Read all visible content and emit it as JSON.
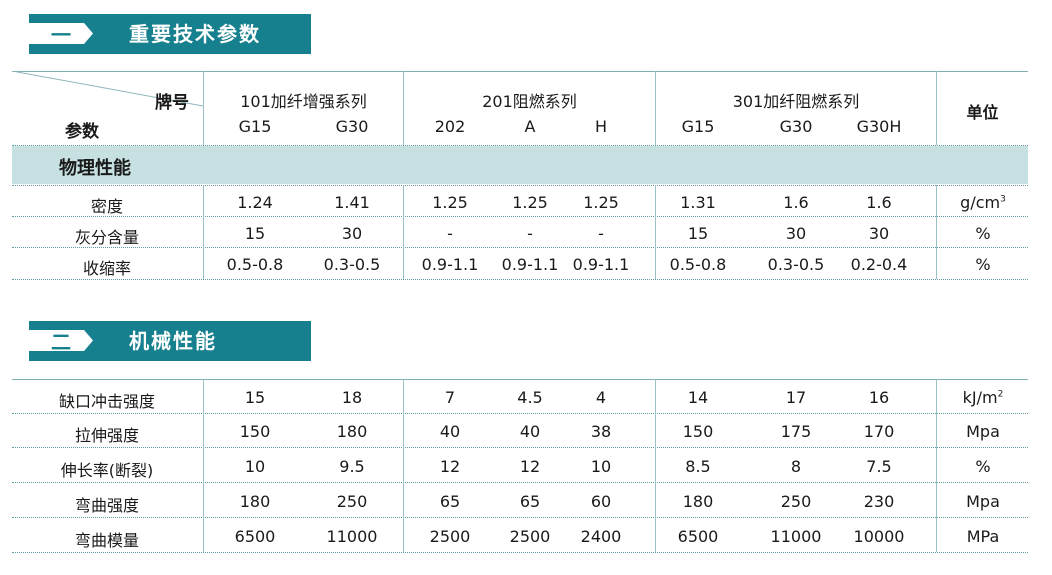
{
  "sections": [
    {
      "num": "一",
      "title": "重要技术参数"
    },
    {
      "num": "二",
      "title": "机械性能"
    }
  ],
  "header": {
    "brand_label": "牌号",
    "param_label": "参数",
    "unit_label": "单位",
    "groups": [
      "101加纤增强系列",
      "201阻燃系列",
      "301加纤阻燃系列"
    ],
    "grades": [
      "G15",
      "G30",
      "202",
      "A",
      "H",
      "G15",
      "G30",
      "G30H"
    ]
  },
  "physical": {
    "band_label": "物理性能",
    "rows": [
      {
        "name": "密度",
        "values": [
          "1.24",
          "1.41",
          "1.25",
          "1.25",
          "1.25",
          "1.31",
          "1.6",
          "1.6"
        ],
        "unit": "g/cm",
        "unit_sup": "3"
      },
      {
        "name": "灰分含量",
        "values": [
          "15",
          "30",
          "-",
          "-",
          "-",
          "15",
          "30",
          "30"
        ],
        "unit": "%",
        "unit_sup": ""
      },
      {
        "name": "收缩率",
        "values": [
          "0.5-0.8",
          "0.3-0.5",
          "0.9-1.1",
          "0.9-1.1",
          "0.9-1.1",
          "0.5-0.8",
          "0.3-0.5",
          "0.2-0.4"
        ],
        "unit": "%",
        "unit_sup": ""
      }
    ]
  },
  "mechanical": {
    "rows": [
      {
        "name": "缺口冲击强度",
        "values": [
          "15",
          "18",
          "7",
          "4.5",
          "4",
          "14",
          "17",
          "16"
        ],
        "unit": "kJ/m",
        "unit_sup": "2"
      },
      {
        "name": "拉伸强度",
        "values": [
          "150",
          "180",
          "40",
          "40",
          "38",
          "150",
          "175",
          "170"
        ],
        "unit": "Mpa",
        "unit_sup": ""
      },
      {
        "name": "伸长率(断裂)",
        "values": [
          "10",
          "9.5",
          "12",
          "12",
          "10",
          "8.5",
          "8",
          "7.5"
        ],
        "unit": "%",
        "unit_sup": ""
      },
      {
        "name": "弯曲强度",
        "values": [
          "180",
          "250",
          "65",
          "65",
          "60",
          "180",
          "250",
          "230"
        ],
        "unit": "Mpa",
        "unit_sup": ""
      },
      {
        "name": "弯曲模量",
        "values": [
          "6500",
          "11000",
          "2500",
          "2500",
          "2400",
          "6500",
          "11000",
          "10000"
        ],
        "unit": "MPa",
        "unit_sup": ""
      }
    ]
  },
  "colors": {
    "accent": "#17808e",
    "band": "#c7e1e3"
  }
}
